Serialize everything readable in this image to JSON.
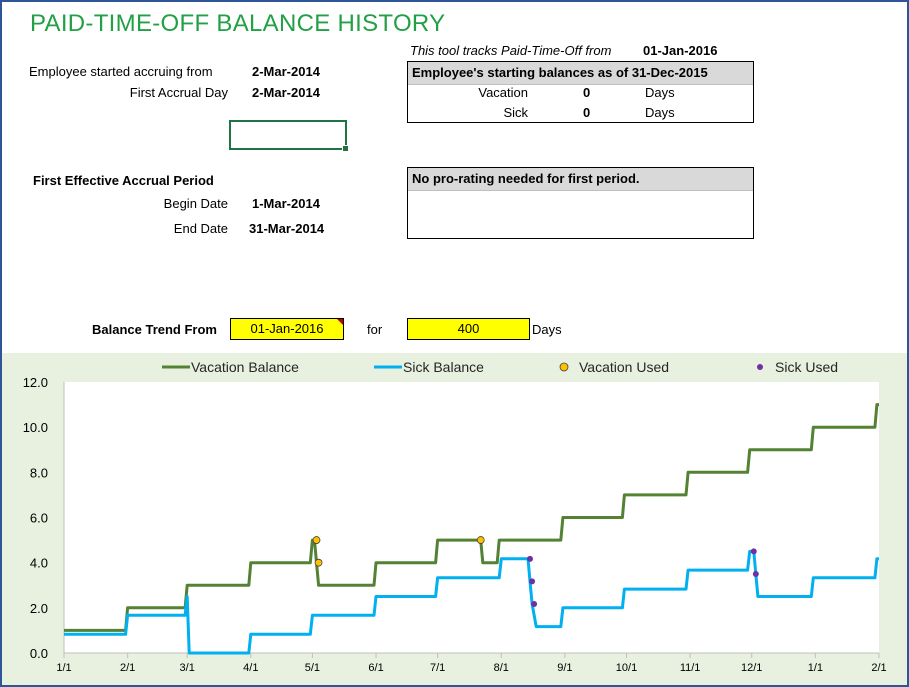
{
  "header": {
    "title": "PAID-TIME-OFF BALANCE HISTORY",
    "tracks_label": "This tool tracks Paid-Time-Off  from",
    "tracks_date": "01-Jan-2016"
  },
  "employee": {
    "started_label": "Employee started accruing from",
    "started_value": "2-Mar-2014",
    "first_accrual_label": "First Accrual Day",
    "first_accrual_value": "2-Mar-2014"
  },
  "starting_balances": {
    "header": "Employee's starting balances as of 31-Dec-2015",
    "rows": [
      {
        "label": "Vacation",
        "value": "0",
        "unit": "Days"
      },
      {
        "label": "Sick",
        "value": "0",
        "unit": "Days"
      }
    ]
  },
  "accrual_period": {
    "heading": "First Effective Accrual Period",
    "begin_label": "Begin Date",
    "begin_value": "1-Mar-2014",
    "end_label": "End Date",
    "end_value": "31-Mar-2014"
  },
  "prorating": {
    "message": "No pro-rating needed for first period."
  },
  "trend": {
    "label": "Balance Trend From",
    "from_value": "01-Jan-2016",
    "for_label": "for",
    "days_value": "400",
    "days_unit": "Days"
  },
  "colors": {
    "vacation": "#548235",
    "sick": "#00b0f0",
    "vacation_used": "#ffc000",
    "sick_used": "#7030a0",
    "title": "#22a045",
    "input_fill": "#ffff00",
    "plot_bg": "#e8f0df"
  },
  "chart_data": {
    "type": "line",
    "grid": false,
    "legend_position": "top",
    "ylim": [
      0,
      12
    ],
    "yticks": [
      "0.0",
      "2.0",
      "4.0",
      "6.0",
      "8.0",
      "10.0",
      "12.0"
    ],
    "xlim": [
      0,
      397
    ],
    "xtick_labels": [
      "1/1",
      "2/1",
      "3/1",
      "4/1",
      "5/1",
      "6/1",
      "7/1",
      "8/1",
      "9/1",
      "10/1",
      "11/1",
      "12/1",
      "1/1",
      "2/1"
    ],
    "xtick_days": [
      0,
      31,
      60,
      91,
      121,
      152,
      182,
      213,
      244,
      274,
      305,
      335,
      366,
      397
    ],
    "legend": [
      "Vacation Balance",
      "Sick Balance",
      "Vacation Used",
      "Sick Used"
    ],
    "series": [
      {
        "name": "Vacation Balance",
        "kind": "line",
        "points": [
          [
            0,
            1
          ],
          [
            30,
            1
          ],
          [
            31,
            2
          ],
          [
            59,
            2
          ],
          [
            60,
            3
          ],
          [
            90,
            3
          ],
          [
            91,
            4
          ],
          [
            120,
            4
          ],
          [
            121,
            5
          ],
          [
            122,
            5
          ],
          [
            123,
            4
          ],
          [
            124,
            3
          ],
          [
            151,
            3
          ],
          [
            152,
            4
          ],
          [
            181,
            4
          ],
          [
            182,
            5
          ],
          [
            203,
            5
          ],
          [
            204,
            4
          ],
          [
            211,
            4
          ],
          [
            212,
            5
          ],
          [
            242,
            5
          ],
          [
            243,
            6
          ],
          [
            272,
            6
          ],
          [
            273,
            7
          ],
          [
            303,
            7
          ],
          [
            304,
            8
          ],
          [
            333,
            8
          ],
          [
            334,
            9
          ],
          [
            364,
            9
          ],
          [
            365,
            10
          ],
          [
            395,
            10
          ],
          [
            396,
            11
          ],
          [
            397,
            11
          ]
        ]
      },
      {
        "name": "Sick Balance",
        "kind": "line",
        "points": [
          [
            0,
            0.83
          ],
          [
            30,
            0.83
          ],
          [
            31,
            1.67
          ],
          [
            59,
            1.67
          ],
          [
            60,
            2.5
          ],
          [
            61,
            0
          ],
          [
            90,
            0
          ],
          [
            91,
            0.83
          ],
          [
            120,
            0.83
          ],
          [
            121,
            1.67
          ],
          [
            151,
            1.67
          ],
          [
            152,
            2.5
          ],
          [
            181,
            2.5
          ],
          [
            182,
            3.33
          ],
          [
            212,
            3.33
          ],
          [
            213,
            4.17
          ],
          [
            226,
            4.17
          ],
          [
            227,
            3.17
          ],
          [
            228,
            2.17
          ],
          [
            230,
            1.17
          ],
          [
            242,
            1.17
          ],
          [
            243,
            2
          ],
          [
            272,
            2
          ],
          [
            273,
            2.83
          ],
          [
            303,
            2.83
          ],
          [
            304,
            3.67
          ],
          [
            333,
            3.67
          ],
          [
            334,
            4.5
          ],
          [
            336,
            4.5
          ],
          [
            337,
            3.5
          ],
          [
            338,
            2.5
          ],
          [
            364,
            2.5
          ],
          [
            365,
            3.33
          ],
          [
            395,
            3.33
          ],
          [
            396,
            4.17
          ],
          [
            397,
            4.17
          ]
        ]
      },
      {
        "name": "Vacation Used",
        "kind": "markers",
        "points": [
          [
            123,
            5
          ],
          [
            124,
            4
          ],
          [
            203,
            5
          ]
        ]
      },
      {
        "name": "Sick Used",
        "kind": "markers",
        "points": [
          [
            227,
            4.17
          ],
          [
            228,
            3.17
          ],
          [
            229,
            2.17
          ],
          [
            336,
            4.5
          ],
          [
            337,
            3.5
          ]
        ]
      }
    ]
  }
}
